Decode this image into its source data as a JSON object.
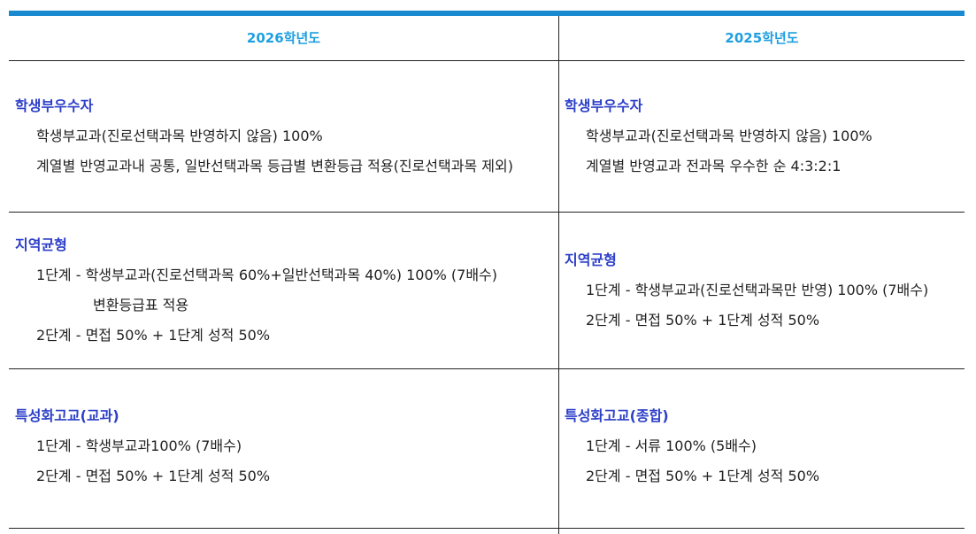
{
  "headers": {
    "left": "2026학년도",
    "right": "2025학년도"
  },
  "rows": [
    {
      "left": {
        "title": "학생부우수자",
        "lines": [
          "학생부교과(진로선택과목 반영하지 않음) 100%",
          "계열별 반영교과내 공통, 일반선택과목 등급별 변환등급 적용(진로선택과목 제외)"
        ]
      },
      "right": {
        "title": "학생부우수자",
        "lines": [
          "학생부교과(진로선택과목 반영하지 않음) 100%",
          "계열별 반영교과 전과목 우수한 순 4:3:2:1"
        ]
      }
    },
    {
      "left": {
        "title": "지역균형",
        "lines": [
          "1단계 - 학생부교과(진로선택과목 60%+일반선택과목 40%) 100% (7배수)",
          "변환등급표 적용",
          "2단계 - 면접 50% + 1단계 성적 50%"
        ]
      },
      "right": {
        "title": "지역균형",
        "lines": [
          "1단계 - 학생부교과(진로선택과목만 반영) 100% (7배수)",
          "2단계 - 면접 50% + 1단계 성적 50%"
        ]
      }
    },
    {
      "left": {
        "title": "특성화고교(교과)",
        "lines": [
          "1단계 - 학생부교과100% (7배수)",
          "2단계 - 면접 50% + 1단계 성적 50%"
        ]
      },
      "right": {
        "title": "특성화고교(종합)",
        "lines": [
          "1단계 - 서류 100% (5배수)",
          "2단계 - 면접 50% + 1단계 성적 50%"
        ]
      }
    }
  ]
}
